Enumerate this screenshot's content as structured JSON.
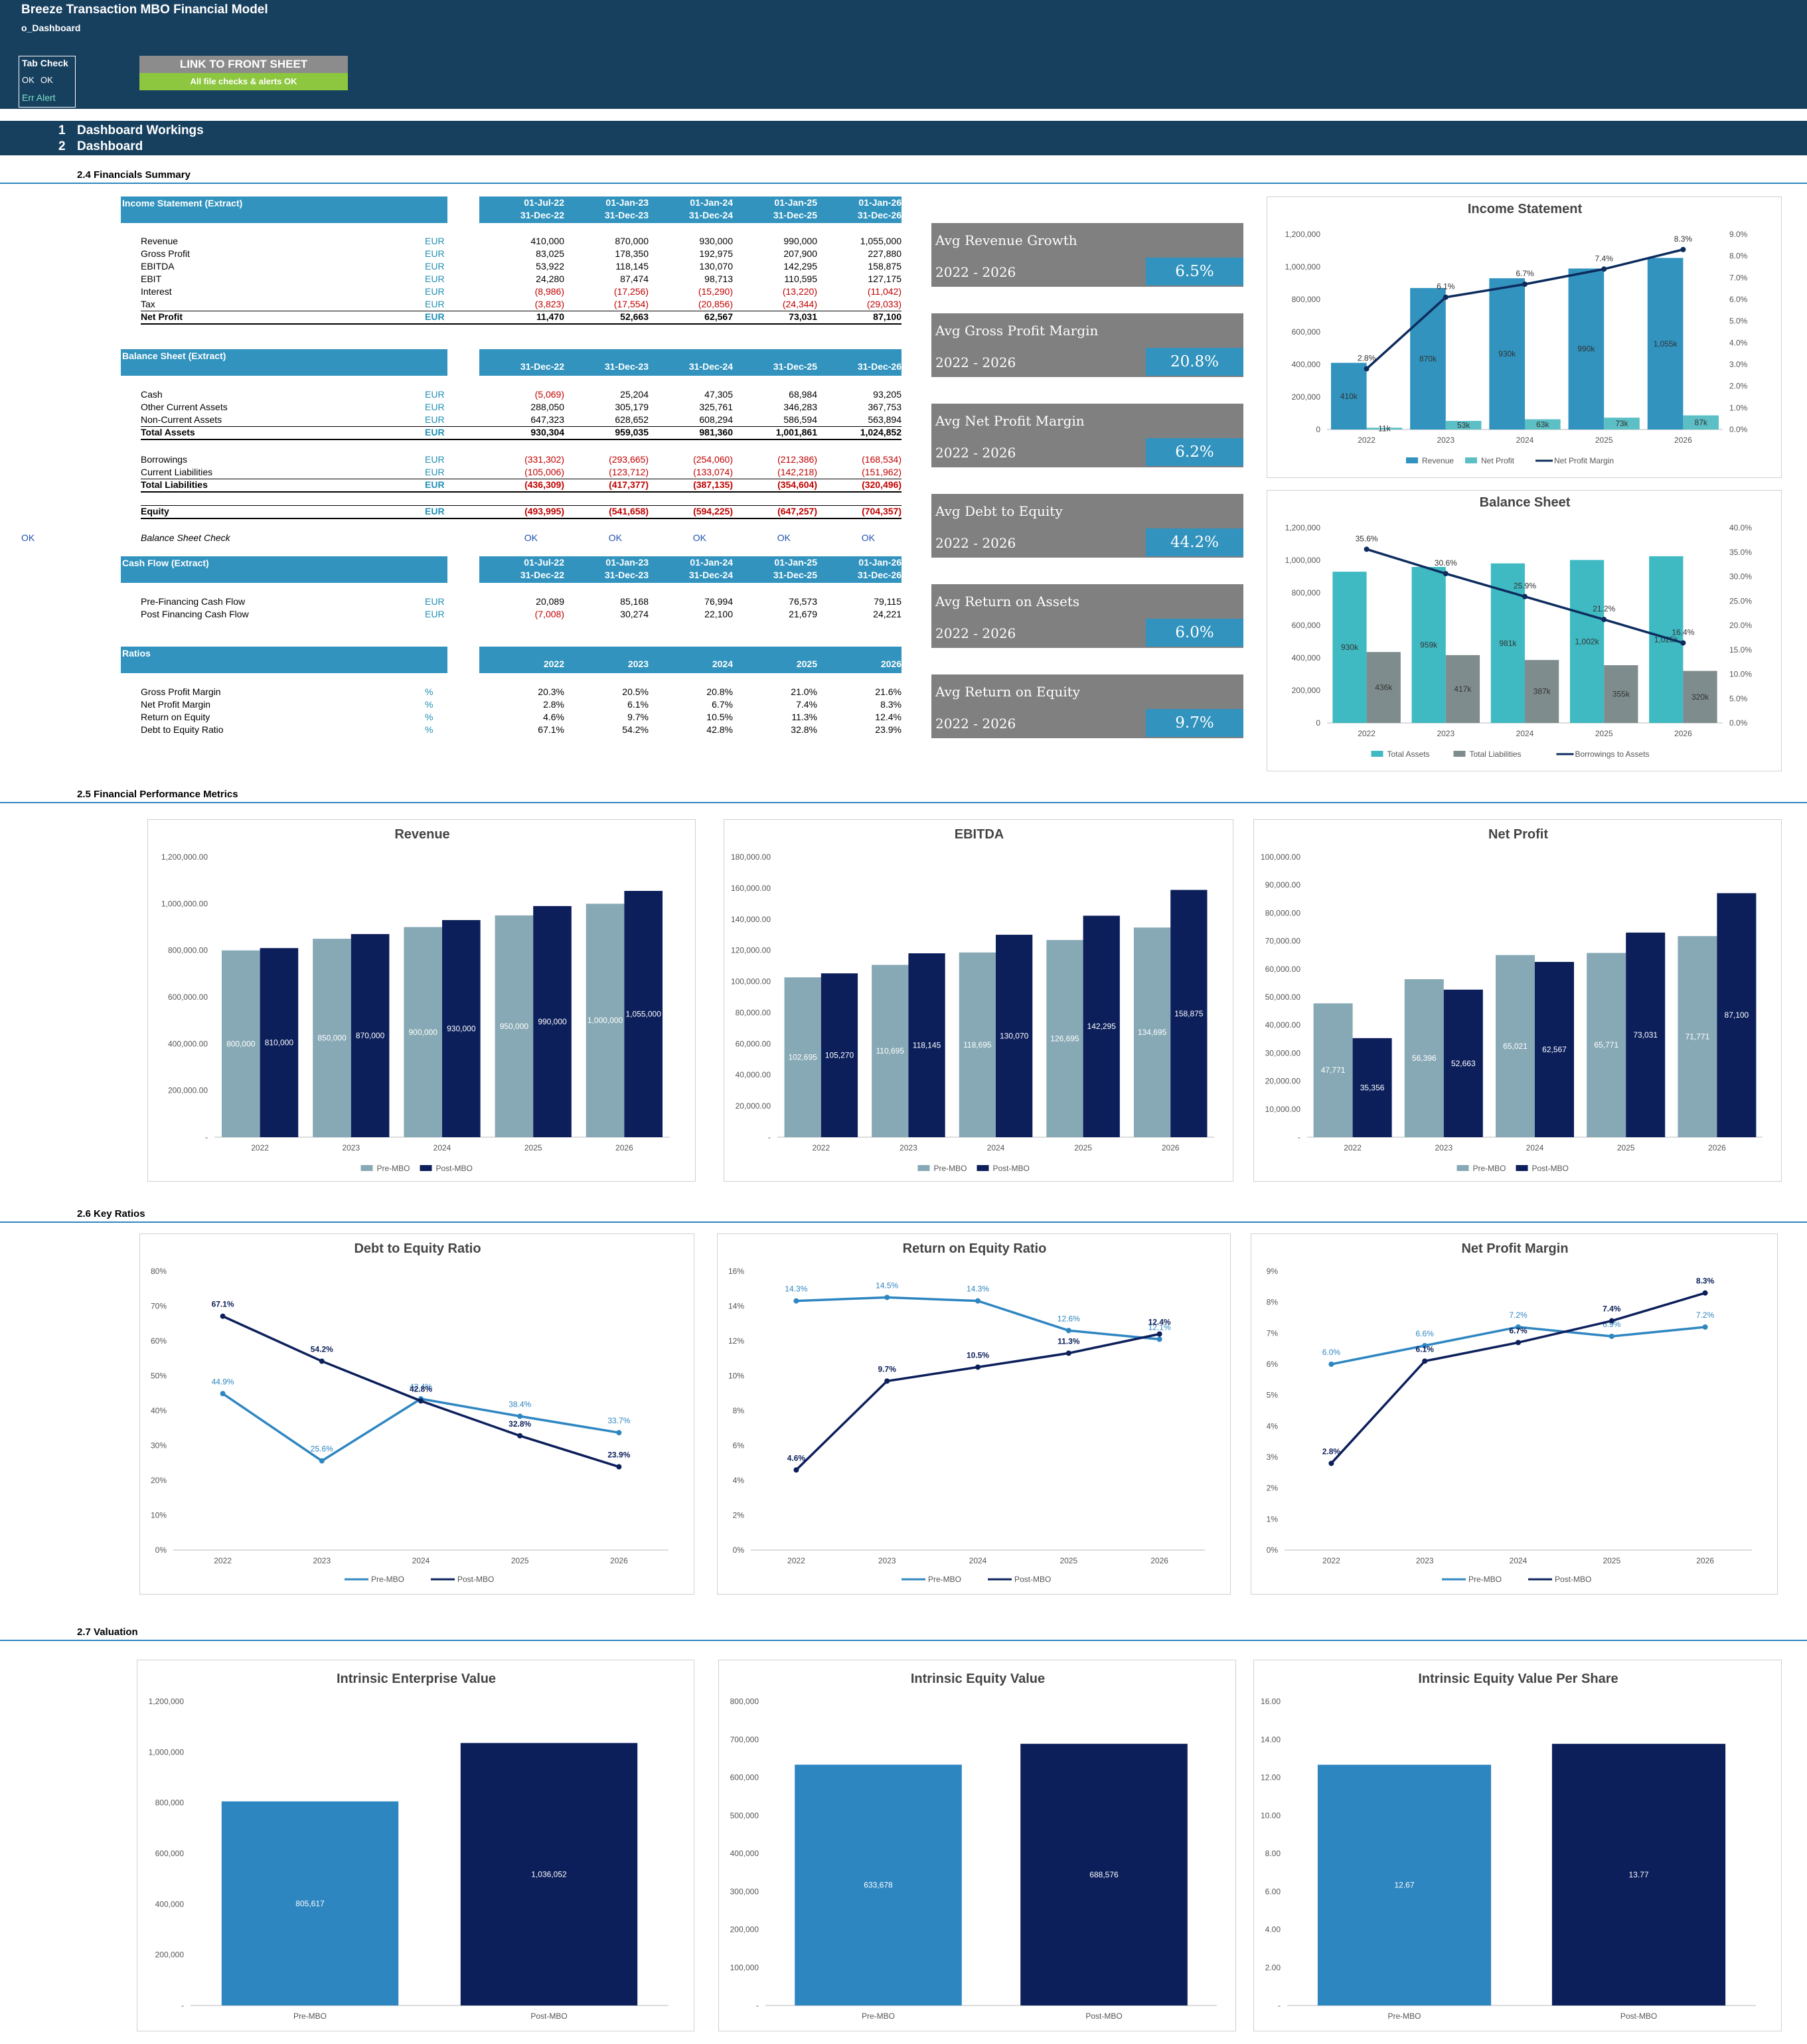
{
  "header": {
    "title": "Breeze Transaction MBO Financial Model",
    "sheet": "o_Dashboard"
  },
  "tabcheck": {
    "title": "Tab Check",
    "ok1": "OK",
    "ok2": "OK",
    "err": "Err Alert"
  },
  "buttons": {
    "front": "LINK TO FRONT SHEET",
    "ok": "All file checks & alerts OK"
  },
  "nav": [
    {
      "num": "1",
      "label": "Dashboard Workings"
    },
    {
      "num": "2",
      "label": "Dashboard"
    }
  ],
  "sections": {
    "s24": "2.4   Financials Summary",
    "s25": "2.5   Financial Performance Metrics",
    "s26": "2.6   Key Ratios",
    "s27": "2.7   Valuation"
  },
  "is": {
    "title": "Income Statement (Extract)",
    "dates1": [
      "01-Jul-22",
      "01-Jan-23",
      "01-Jan-24",
      "01-Jan-25",
      "01-Jan-26"
    ],
    "dates2": [
      "31-Dec-22",
      "31-Dec-23",
      "31-Dec-24",
      "31-Dec-25",
      "31-Dec-26"
    ],
    "rows": [
      {
        "l": "Revenue",
        "u": "EUR",
        "v": [
          "410,000",
          "870,000",
          "930,000",
          "990,000",
          "1,055,000"
        ]
      },
      {
        "l": "Gross Profit",
        "u": "EUR",
        "v": [
          "83,025",
          "178,350",
          "192,975",
          "207,900",
          "227,880"
        ]
      },
      {
        "l": "EBITDA",
        "u": "EUR",
        "v": [
          "53,922",
          "118,145",
          "130,070",
          "142,295",
          "158,875"
        ]
      },
      {
        "l": "EBIT",
        "u": "EUR",
        "v": [
          "24,280",
          "87,474",
          "98,713",
          "110,595",
          "127,175"
        ]
      },
      {
        "l": "Interest",
        "u": "EUR",
        "v": [
          "(8,986)",
          "(17,256)",
          "(15,290)",
          "(13,220)",
          "(11,042)"
        ]
      },
      {
        "l": "Tax",
        "u": "EUR",
        "v": [
          "(3,823)",
          "(17,554)",
          "(20,856)",
          "(24,344)",
          "(29,033)"
        ]
      },
      {
        "l": "Net Profit",
        "u": "EUR",
        "v": [
          "11,470",
          "52,663",
          "62,567",
          "73,031",
          "87,100"
        ]
      }
    ]
  },
  "bs": {
    "title": "Balance Sheet (Extract)",
    "dates": [
      "31-Dec-22",
      "31-Dec-23",
      "31-Dec-24",
      "31-Dec-25",
      "31-Dec-26"
    ],
    "rows": [
      {
        "l": "Cash",
        "u": "EUR",
        "v": [
          "(5,069)",
          "25,204",
          "47,305",
          "68,984",
          "93,205"
        ]
      },
      {
        "l": "Other Current Assets",
        "u": "EUR",
        "v": [
          "288,050",
          "305,179",
          "325,761",
          "346,283",
          "367,753"
        ]
      },
      {
        "l": "Non-Current Assets",
        "u": "EUR",
        "v": [
          "647,323",
          "628,652",
          "608,294",
          "586,594",
          "563,894"
        ]
      },
      {
        "l": "Total Assets",
        "u": "EUR",
        "v": [
          "930,304",
          "959,035",
          "981,360",
          "1,001,861",
          "1,024,852"
        ]
      },
      {
        "l": "Borrowings",
        "u": "EUR",
        "v": [
          "(331,302)",
          "(293,665)",
          "(254,060)",
          "(212,386)",
          "(168,534)"
        ]
      },
      {
        "l": "Current Liabilities",
        "u": "EUR",
        "v": [
          "(105,006)",
          "(123,712)",
          "(133,074)",
          "(142,218)",
          "(151,962)"
        ]
      },
      {
        "l": "Total Liabilities",
        "u": "EUR",
        "v": [
          "(436,309)",
          "(417,377)",
          "(387,135)",
          "(354,604)",
          "(320,496)"
        ]
      },
      {
        "l": "Equity",
        "u": "EUR",
        "v": [
          "(493,995)",
          "(541,658)",
          "(594,225)",
          "(647,257)",
          "(704,357)"
        ]
      }
    ],
    "check": {
      "flag": "OK",
      "l": "Balance Sheet Check",
      "v": [
        "OK",
        "OK",
        "OK",
        "OK",
        "OK"
      ]
    }
  },
  "cf": {
    "title": "Cash Flow (Extract)",
    "dates1": [
      "01-Jul-22",
      "01-Jan-23",
      "01-Jan-24",
      "01-Jan-25",
      "01-Jan-26"
    ],
    "dates2": [
      "31-Dec-22",
      "31-Dec-23",
      "31-Dec-24",
      "31-Dec-25",
      "31-Dec-26"
    ],
    "rows": [
      {
        "l": "Pre-Financing Cash Flow",
        "u": "EUR",
        "v": [
          "20,089",
          "85,168",
          "76,994",
          "76,573",
          "79,115"
        ]
      },
      {
        "l": "Post Financing Cash Flow",
        "u": "EUR",
        "v": [
          "(7,008)",
          "30,274",
          "22,100",
          "21,679",
          "24,221"
        ]
      }
    ]
  },
  "ratios": {
    "title": "Ratios",
    "years": [
      "2022",
      "2023",
      "2024",
      "2025",
      "2026"
    ],
    "rows": [
      {
        "l": "Gross Profit Margin",
        "u": "%",
        "v": [
          "20.3%",
          "20.5%",
          "20.8%",
          "21.0%",
          "21.6%"
        ]
      },
      {
        "l": "Net Profit Margin",
        "u": "%",
        "v": [
          "2.8%",
          "6.1%",
          "6.7%",
          "7.4%",
          "8.3%"
        ]
      },
      {
        "l": "Return on Equity",
        "u": "%",
        "v": [
          "4.6%",
          "9.7%",
          "10.5%",
          "11.3%",
          "12.4%"
        ]
      },
      {
        "l": "Debt to Equity Ratio",
        "u": "%",
        "v": [
          "67.1%",
          "54.2%",
          "42.8%",
          "32.8%",
          "23.9%"
        ]
      }
    ]
  },
  "cards": [
    {
      "t": "Avg Revenue Growth",
      "p": "2022 - 2026",
      "v": "6.5%"
    },
    {
      "t": "Avg Gross Profit Margin",
      "p": "2022 - 2026",
      "v": "20.8%"
    },
    {
      "t": "Avg Net Profit Margin",
      "p": "2022 - 2026",
      "v": "6.2%"
    },
    {
      "t": "Avg Debt to Equity",
      "p": "2022 - 2026",
      "v": "44.2%"
    },
    {
      "t": "Avg Return on Assets",
      "p": "2022 - 2026",
      "v": "6.0%"
    },
    {
      "t": "Avg Return on Equity",
      "p": "2022 - 2026",
      "v": "9.7%"
    }
  ],
  "chart_data": [
    {
      "id": "is",
      "type": "bar",
      "title": "Income Statement",
      "categories": [
        "2022",
        "2023",
        "2024",
        "2025",
        "2026"
      ],
      "series": [
        {
          "name": "Revenue",
          "values": [
            410000,
            870000,
            930000,
            990000,
            1055000
          ],
          "labels": [
            "410k",
            "870k",
            "930k",
            "990k",
            "1,055k"
          ],
          "color": "#3193be"
        },
        {
          "name": "Net Profit",
          "values": [
            11000,
            53000,
            63000,
            73000,
            87000
          ],
          "labels": [
            "11k",
            "53k",
            "63k",
            "73k",
            "87k"
          ],
          "color": "#5bbfc5"
        }
      ],
      "line": {
        "name": "Net Profit Margin",
        "values": [
          2.8,
          6.1,
          6.7,
          7.4,
          8.3
        ],
        "labels": [
          "2.8%",
          "6.1%",
          "6.7%",
          "7.4%",
          "8.3%"
        ],
        "color": "#0d2c5e"
      },
      "ylim": [
        0,
        1200000
      ],
      "yticks": [
        "0",
        "200,000",
        "400,000",
        "600,000",
        "800,000",
        "1,000,000",
        "1,200,000"
      ],
      "y2lim": [
        0,
        9
      ],
      "y2ticks": [
        "0.0%",
        "1.0%",
        "2.0%",
        "3.0%",
        "4.0%",
        "5.0%",
        "6.0%",
        "7.0%",
        "8.0%",
        "9.0%"
      ]
    },
    {
      "id": "bs",
      "type": "bar",
      "title": "Balance Sheet",
      "categories": [
        "2022",
        "2023",
        "2024",
        "2025",
        "2026"
      ],
      "series": [
        {
          "name": "Total Assets",
          "values": [
            930000,
            959000,
            981000,
            1002000,
            1025000
          ],
          "labels": [
            "930k",
            "959k",
            "981k",
            "1,002k",
            "1,025k"
          ],
          "color": "#3fbac2"
        },
        {
          "name": "Total Liabilities",
          "values": [
            436000,
            417000,
            387000,
            355000,
            320000
          ],
          "labels": [
            "436k",
            "417k",
            "387k",
            "355k",
            "320k"
          ],
          "color": "#7f8c8d"
        }
      ],
      "line": {
        "name": "Borrowings to Assets",
        "values": [
          35.6,
          30.6,
          25.9,
          21.2,
          16.4
        ],
        "labels": [
          "35.6%",
          "30.6%",
          "25.9%",
          "21.2%",
          "16.4%"
        ],
        "color": "#0d2c5e"
      },
      "ylim": [
        0,
        1200000
      ],
      "yticks": [
        "0",
        "200,000",
        "400,000",
        "600,000",
        "800,000",
        "1,000,000",
        "1,200,000"
      ],
      "y2lim": [
        0,
        40
      ],
      "y2ticks": [
        "0.0%",
        "5.0%",
        "10.0%",
        "15.0%",
        "20.0%",
        "25.0%",
        "30.0%",
        "35.0%",
        "40.0%"
      ]
    },
    {
      "id": "rev",
      "type": "bar",
      "title": "Revenue",
      "categories": [
        "2022",
        "2023",
        "2024",
        "2025",
        "2026"
      ],
      "series": [
        {
          "name": "Pre-MBO",
          "values": [
            800000,
            850000,
            900000,
            950000,
            1000000
          ],
          "labels": [
            "800,000",
            "850,000",
            "900,000",
            "950,000",
            "1,000,000"
          ],
          "color": "#87a9b5"
        },
        {
          "name": "Post-MBO",
          "values": [
            810000,
            870000,
            930000,
            990000,
            1055000
          ],
          "labels": [
            "810,000",
            "870,000",
            "930,000",
            "990,000",
            "1,055,000"
          ],
          "color": "#0c1f5b"
        }
      ],
      "ylim": [
        0,
        1200000
      ],
      "yticks": [
        "-",
        "200,000.00",
        "400,000.00",
        "600,000.00",
        "800,000.00",
        "1,000,000.00",
        "1,200,000.00"
      ]
    },
    {
      "id": "ebitda",
      "type": "bar",
      "title": "EBITDA",
      "categories": [
        "2022",
        "2023",
        "2024",
        "2025",
        "2026"
      ],
      "series": [
        {
          "name": "Pre-MBO",
          "values": [
            102695,
            110695,
            118695,
            126695,
            134695
          ],
          "labels": [
            "102,695",
            "110,695",
            "118,695",
            "126,695",
            "134,695"
          ],
          "color": "#87a9b5"
        },
        {
          "name": "Post-MBO",
          "values": [
            105270,
            118145,
            130070,
            142295,
            158875
          ],
          "labels": [
            "105,270",
            "118,145",
            "130,070",
            "142,295",
            "158,875"
          ],
          "color": "#0c1f5b"
        }
      ],
      "ylim": [
        0,
        180000
      ],
      "yticks": [
        "-",
        "20,000.00",
        "40,000.00",
        "60,000.00",
        "80,000.00",
        "100,000.00",
        "120,000.00",
        "140,000.00",
        "160,000.00",
        "180,000.00"
      ]
    },
    {
      "id": "np",
      "type": "bar",
      "title": "Net Profit",
      "categories": [
        "2022",
        "2023",
        "2024",
        "2025",
        "2026"
      ],
      "series": [
        {
          "name": "Pre-MBO",
          "values": [
            47771,
            56396,
            65021,
            65771,
            71771
          ],
          "labels": [
            "47,771",
            "56,396",
            "65,021",
            "65,771",
            "71,771"
          ],
          "color": "#87a9b5"
        },
        {
          "name": "Post-MBO",
          "values": [
            35356,
            52663,
            62567,
            73031,
            87100
          ],
          "labels": [
            "35,356",
            "52,663",
            "62,567",
            "73,031",
            "87,100"
          ],
          "color": "#0c1f5b"
        }
      ],
      "ylim": [
        0,
        100000
      ],
      "yticks": [
        "-",
        "10,000.00",
        "20,000.00",
        "30,000.00",
        "40,000.00",
        "50,000.00",
        "60,000.00",
        "70,000.00",
        "80,000.00",
        "90,000.00",
        "100,000.00"
      ]
    },
    {
      "id": "de",
      "type": "line",
      "title": "Debt to Equity Ratio",
      "categories": [
        "2022",
        "2023",
        "2024",
        "2025",
        "2026"
      ],
      "series": [
        {
          "name": "Pre-MBO",
          "values": [
            44.9,
            25.6,
            43.4,
            38.4,
            33.7
          ],
          "labels": [
            "44.9%",
            "25.6%",
            "43.4%",
            "38.4%",
            "33.7%"
          ],
          "color": "#2e86c1"
        },
        {
          "name": "Post-MBO",
          "values": [
            67.1,
            54.2,
            42.8,
            32.8,
            23.9
          ],
          "labels": [
            "67.1%",
            "54.2%",
            "42.8%",
            "32.8%",
            "23.9%"
          ],
          "color": "#0c1f5b"
        }
      ],
      "ylim": [
        0,
        80
      ],
      "yticks": [
        "0%",
        "10%",
        "20%",
        "30%",
        "40%",
        "50%",
        "60%",
        "70%",
        "80%"
      ]
    },
    {
      "id": "roe",
      "type": "line",
      "title": "Return on Equity Ratio",
      "categories": [
        "2022",
        "2023",
        "2024",
        "2025",
        "2026"
      ],
      "series": [
        {
          "name": "Pre-MBO",
          "values": [
            14.3,
            14.5,
            14.3,
            12.6,
            12.1
          ],
          "labels": [
            "14.3%",
            "14.5%",
            "14.3%",
            "12.6%",
            "12.1%"
          ],
          "color": "#2e86c1"
        },
        {
          "name": "Post-MBO",
          "values": [
            4.6,
            9.7,
            10.5,
            11.3,
            12.4
          ],
          "labels": [
            "4.6%",
            "9.7%",
            "10.5%",
            "11.3%",
            "12.4%"
          ],
          "color": "#0c1f5b"
        }
      ],
      "ylim": [
        0,
        16
      ],
      "yticks": [
        "0%",
        "2%",
        "4%",
        "6%",
        "8%",
        "10%",
        "12%",
        "14%",
        "16%"
      ]
    },
    {
      "id": "npm",
      "type": "line",
      "title": "Net Profit Margin",
      "categories": [
        "2022",
        "2023",
        "2024",
        "2025",
        "2026"
      ],
      "series": [
        {
          "name": "Pre-MBO",
          "values": [
            6.0,
            6.6,
            7.2,
            6.9,
            7.2
          ],
          "labels": [
            "6.0%",
            "6.6%",
            "7.2%",
            "6.9%",
            "7.2%"
          ],
          "color": "#2e86c1"
        },
        {
          "name": "Post-MBO",
          "values": [
            2.8,
            6.1,
            6.7,
            7.4,
            8.3
          ],
          "labels": [
            "2.8%",
            "6.1%",
            "6.7%",
            "7.4%",
            "8.3%"
          ],
          "color": "#0c1f5b"
        }
      ],
      "ylim": [
        0,
        9
      ],
      "yticks": [
        "0%",
        "1%",
        "2%",
        "3%",
        "4%",
        "5%",
        "6%",
        "7%",
        "8%",
        "9%"
      ]
    },
    {
      "id": "iev",
      "type": "bar",
      "title": "Intrinsic Enterprise Value",
      "categories": [
        "Pre-MBO",
        "Post-MBO"
      ],
      "values": [
        805617,
        1036052
      ],
      "labels": [
        "805,617",
        "1,036,052"
      ],
      "colors": [
        "#2e86c1",
        "#0c1f5b"
      ],
      "ylim": [
        0,
        1200000
      ],
      "yticks": [
        "-",
        "200,000",
        "400,000",
        "600,000",
        "800,000",
        "1,000,000",
        "1,200,000"
      ]
    },
    {
      "id": "ieqv",
      "type": "bar",
      "title": "Intrinsic Equity Value",
      "categories": [
        "Pre-MBO",
        "Post-MBO"
      ],
      "values": [
        633678,
        688576
      ],
      "labels": [
        "633,678",
        "688,576"
      ],
      "colors": [
        "#2e86c1",
        "#0c1f5b"
      ],
      "ylim": [
        0,
        800000
      ],
      "yticks": [
        "-",
        "100,000",
        "200,000",
        "300,000",
        "400,000",
        "500,000",
        "600,000",
        "700,000",
        "800,000"
      ]
    },
    {
      "id": "ieps",
      "type": "bar",
      "title": "Intrinsic Equity Value Per Share",
      "categories": [
        "Pre-MBO",
        "Post-MBO"
      ],
      "values": [
        12.67,
        13.77
      ],
      "labels": [
        "12.67",
        "13.77"
      ],
      "colors": [
        "#2e86c1",
        "#0c1f5b"
      ],
      "ylim": [
        0,
        16
      ],
      "yticks": [
        "-",
        "2.00",
        "4.00",
        "6.00",
        "8.00",
        "10.00",
        "12.00",
        "14.00",
        "16.00"
      ]
    }
  ]
}
